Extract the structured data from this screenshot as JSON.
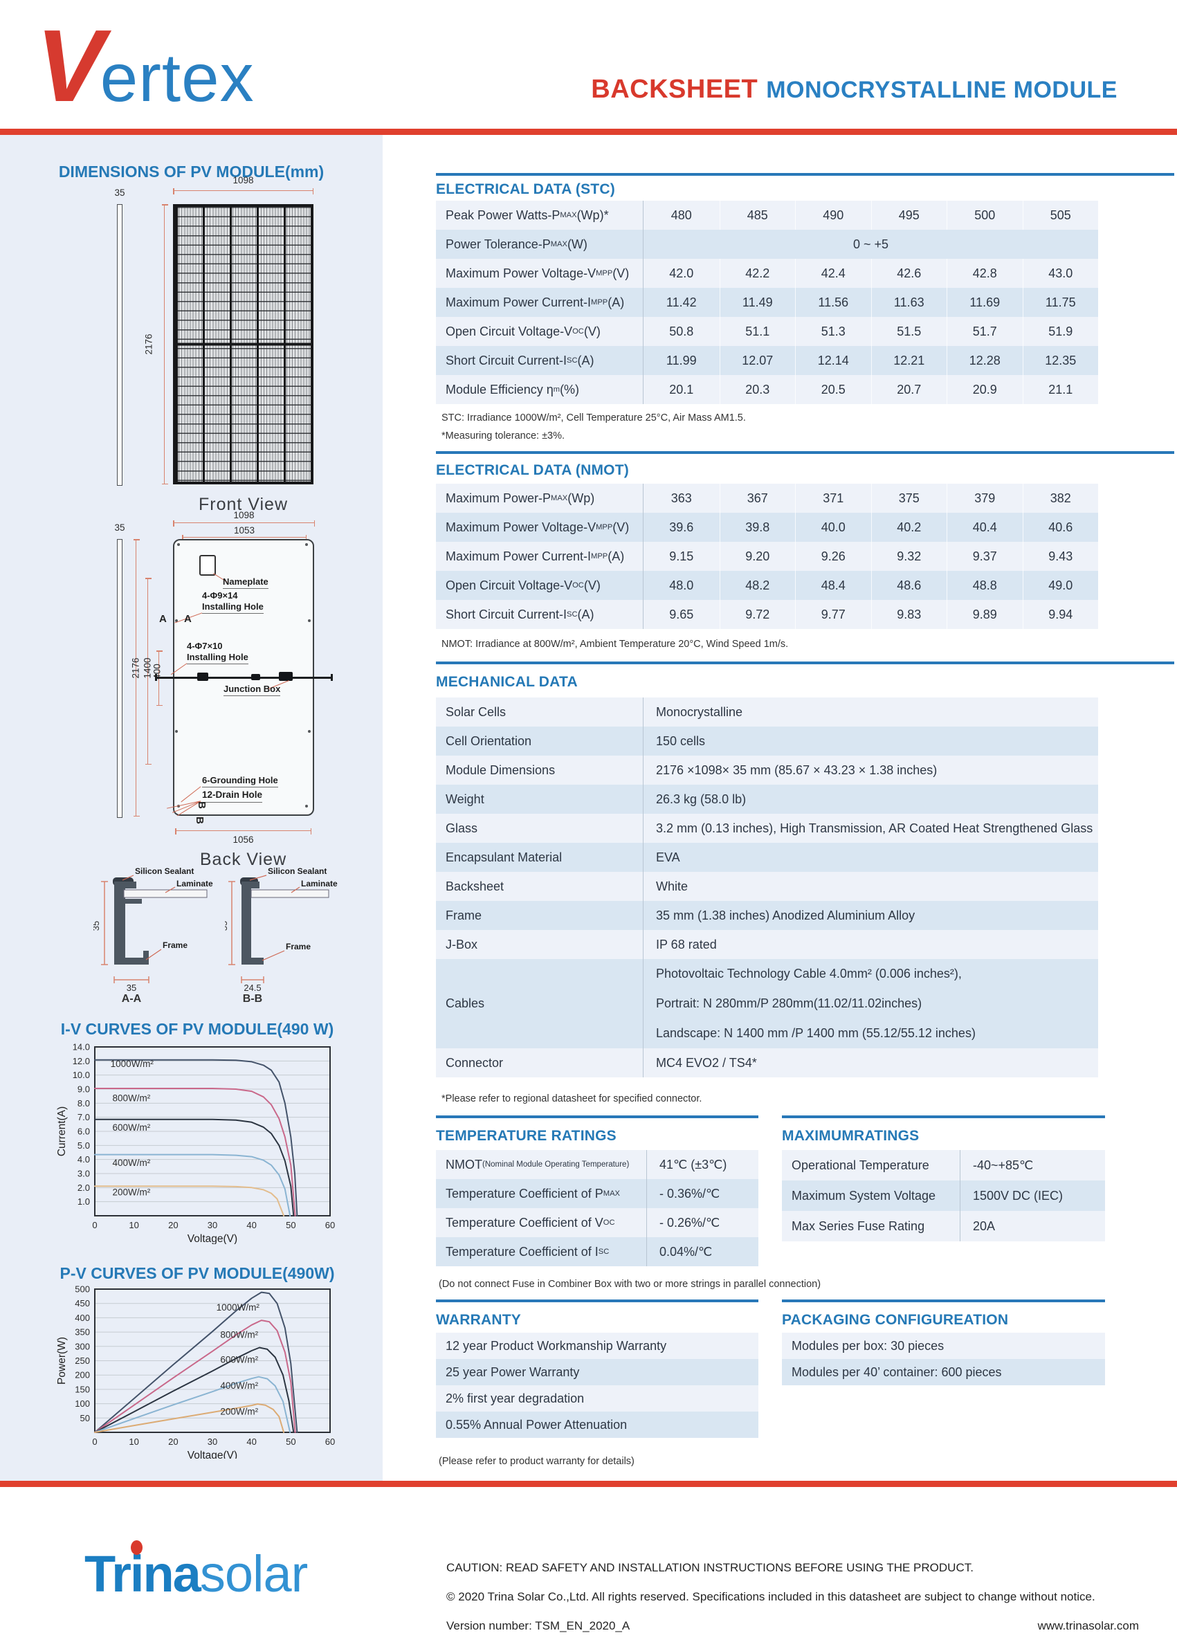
{
  "colors": {
    "accent_red": "#e0402e",
    "accent_blue": "#2579b6",
    "panel_bg": "#e9eef7",
    "row_light": "#eef2f9",
    "row_dark": "#d9e6f2",
    "logo_red": "#d63a2f",
    "logo_blue": "#2a80c2"
  },
  "header": {
    "logo_v": "V",
    "logo_rest": "ertex",
    "title_red": "BACKSHEET",
    "title_blue": "MONOCRYSTALLINE MODULE"
  },
  "dimensions": {
    "title": "DIMENSIONS OF PV MODULE(mm)",
    "front": {
      "top_width": "1098",
      "thickness": "35",
      "height": "2176",
      "caption": "Front View"
    },
    "back": {
      "outer_width": "1098",
      "inner_width": "1053",
      "thickness": "35",
      "height": "2176",
      "mid_span": "1400",
      "hole_span": "400",
      "bottom_width": "1056",
      "caption": "Back View",
      "nameplate": "Nameplate",
      "hole1_line1": "4-Φ9×14",
      "hole1_line2": "Installing Hole",
      "hole2_line1": "4-Φ7×10",
      "hole2_line2": "Installing Hole",
      "junction": "Junction Box",
      "grounding": "6-Grounding Hole",
      "drain": "12-Drain Hole",
      "marker_a": "A",
      "marker_b": "B"
    },
    "section_a": {
      "sealant": "Silicon Sealant",
      "laminate": "Laminate",
      "frame": "Frame",
      "height": "35",
      "width": "35",
      "caption": "A-A"
    },
    "section_b": {
      "sealant": "Silicon Sealant",
      "laminate": "Laminate",
      "frame": "Frame",
      "height": "35",
      "width": "24.5",
      "caption": "B-B"
    }
  },
  "electrical_stc": {
    "title": "ELECTRICAL DATA (STC)",
    "rows": [
      {
        "label": "Peak Power Watts-P<sub>MAX</sub> (Wp)*",
        "values": [
          "480",
          "485",
          "490",
          "495",
          "500",
          "505"
        ]
      },
      {
        "label": "Power Tolerance-P<sub>MAX</sub> (W)",
        "span": "0 ~ +5"
      },
      {
        "label": "Maximum Power Voltage-V<sub>MPP</sub> (V)",
        "values": [
          "42.0",
          "42.2",
          "42.4",
          "42.6",
          "42.8",
          "43.0"
        ]
      },
      {
        "label": "Maximum Power Current-I<sub>MPP</sub> (A)",
        "values": [
          "11.42",
          "11.49",
          "11.56",
          "11.63",
          "11.69",
          "11.75"
        ]
      },
      {
        "label": "Open Circuit Voltage-V<sub>OC</sub> (V)",
        "values": [
          "50.8",
          "51.1",
          "51.3",
          "51.5",
          "51.7",
          "51.9"
        ]
      },
      {
        "label": "Short Circuit Current-I<sub>SC</sub> (A)",
        "values": [
          "11.99",
          "12.07",
          "12.14",
          "12.21",
          "12.28",
          "12.35"
        ]
      },
      {
        "label": "Module Efficiency η<sub>m</sub> (%)",
        "values": [
          "20.1",
          "20.3",
          "20.5",
          "20.7",
          "20.9",
          "21.1"
        ]
      }
    ],
    "footnote1": "STC: Irradiance 1000W/m², Cell Temperature 25°C, Air Mass AM1.5.",
    "footnote2": "*Measuring tolerance: ±3%."
  },
  "electrical_nmot": {
    "title": "ELECTRICAL DATA (NMOT)",
    "rows": [
      {
        "label": "Maximum Power-P<sub>MAX</sub> (Wp)",
        "values": [
          "363",
          "367",
          "371",
          "375",
          "379",
          "382"
        ]
      },
      {
        "label": "Maximum Power Voltage-V<sub>MPP</sub> (V)",
        "values": [
          "39.6",
          "39.8",
          "40.0",
          "40.2",
          "40.4",
          "40.6"
        ]
      },
      {
        "label": "Maximum Power Current-I<sub>MPP</sub> (A)",
        "values": [
          "9.15",
          "9.20",
          "9.26",
          "9.32",
          "9.37",
          "9.43"
        ]
      },
      {
        "label": "Open Circuit Voltage-V<sub>OC</sub> (V)",
        "values": [
          "48.0",
          "48.2",
          "48.4",
          "48.6",
          "48.8",
          "49.0"
        ]
      },
      {
        "label": "Short Circuit Current-I<sub>SC</sub> (A)",
        "values": [
          "9.65",
          "9.72",
          "9.77",
          "9.83",
          "9.89",
          "9.94"
        ]
      }
    ],
    "footnote": "NMOT: Irradiance at 800W/m², Ambient Temperature 20°C, Wind Speed 1m/s."
  },
  "mechanical": {
    "title": "MECHANICAL DATA",
    "rows": [
      {
        "label": "Solar Cells",
        "lines": [
          "Monocrystalline"
        ]
      },
      {
        "label": "Cell Orientation",
        "lines": [
          "150 cells"
        ]
      },
      {
        "label": "Module Dimensions",
        "lines": [
          "2176 ×1098× 35 mm (85.67 × 43.23 × 1.38 inches)"
        ]
      },
      {
        "label": "Weight",
        "lines": [
          "26.3 kg (58.0 lb)"
        ]
      },
      {
        "label": "Glass",
        "lines": [
          "3.2 mm (0.13 inches), High Transmission, AR Coated Heat Strengthened Glass"
        ]
      },
      {
        "label": "Encapsulant Material",
        "lines": [
          "EVA"
        ]
      },
      {
        "label": "Backsheet",
        "lines": [
          "White"
        ]
      },
      {
        "label": "Frame",
        "lines": [
          "35 mm (1.38 inches) Anodized Aluminium Alloy"
        ]
      },
      {
        "label": "J-Box",
        "lines": [
          "IP 68 rated"
        ]
      },
      {
        "label": "Cables",
        "lines": [
          "Photovoltaic Technology Cable 4.0mm² (0.006 inches²),",
          "Portrait: N 280mm/P 280mm(11.02/11.02inches)",
          "Landscape: N 1400 mm /P 1400 mm (55.12/55.12 inches)"
        ]
      },
      {
        "label": "Connector",
        "lines": [
          "MC4 EVO2 / TS4*"
        ]
      }
    ],
    "footnote": "*Please refer to regional datasheet for specified connector."
  },
  "temperature": {
    "title": "TEMPERATURE RATINGS",
    "rows": [
      {
        "label": "NMOT<small> (Nominal Module Operating Temperature)</small>",
        "value": "41℃ (±3℃)"
      },
      {
        "label": "Temperature Coefficient of P<sub>MAX</sub>",
        "value": "- 0.36%/℃"
      },
      {
        "label": "Temperature Coefficient of V<sub>OC</sub>",
        "value": "- 0.26%/℃"
      },
      {
        "label": "Temperature Coefficient of I<sub>SC</sub>",
        "value": "0.04%/℃"
      }
    ],
    "footnote": "(Do not connect Fuse in Combiner Box with two or more strings in parallel connection)"
  },
  "maximum": {
    "title": "MAXIMUMRATINGS",
    "rows": [
      {
        "label": "Operational Temperature",
        "value": "-40~+85℃"
      },
      {
        "label": "Maximum System Voltage",
        "value": "1500V DC (IEC)"
      },
      {
        "label": "Max Series Fuse Rating",
        "value": "20A"
      }
    ]
  },
  "warranty": {
    "title": "WARRANTY",
    "items": [
      "12 year Product Workmanship Warranty",
      "25 year Power Warranty",
      "2% first year degradation",
      "0.55% Annual Power Attenuation"
    ],
    "footnote": "(Please refer to product warranty for details)"
  },
  "packaging": {
    "title": "PACKAGING CONFIGUREATION",
    "items": [
      "Modules per box: 30 pieces",
      "Modules per 40’ container: 600 pieces"
    ]
  },
  "footer": {
    "logo_trina": "Tr",
    "logo_trina2": "na",
    "logo_i": "i",
    "logo_solar": "solar",
    "caution": "CAUTION: READ SAFETY AND INSTALLATION INSTRUCTIONS BEFORE USING THE PRODUCT.",
    "copyright": "© 2020 Trina Solar Co.,Ltd. All rights reserved. Specifications included in this datasheet are subject to change without notice.",
    "version": "Version number: TSM_EN_2020_A",
    "website": "www.trinasolar.com"
  },
  "chart_data": [
    {
      "type": "line",
      "title": "I-V CURVES OF PV MODULE(490 W)",
      "xlabel": "Voltage(V)",
      "ylabel": "Current(A)",
      "xlim": [
        0,
        60
      ],
      "xticks": [
        0,
        10,
        20,
        30,
        40,
        50,
        60
      ],
      "yticks": [
        1,
        2,
        3,
        4,
        5,
        6,
        7,
        8,
        9,
        10,
        12,
        14
      ],
      "y_compressed_above": 10,
      "grid": true,
      "legend_position": "inline",
      "series": [
        {
          "name": "1000W/m²",
          "color": "#44536a",
          "points": [
            [
              0,
              12.15
            ],
            [
              30,
              12.15
            ],
            [
              36,
              12.1
            ],
            [
              40,
              11.9
            ],
            [
              43,
              11.4
            ],
            [
              45,
              10.7
            ],
            [
              47,
              9.5
            ],
            [
              48.5,
              8.0
            ],
            [
              50,
              5.6
            ],
            [
              51,
              3.0
            ],
            [
              51.6,
              0
            ]
          ]
        },
        {
          "name": "800W/m²",
          "color": "#c9688a",
          "points": [
            [
              0,
              9.05
            ],
            [
              30,
              9.05
            ],
            [
              36,
              9.0
            ],
            [
              40,
              8.85
            ],
            [
              43,
              8.45
            ],
            [
              45,
              7.9
            ],
            [
              47,
              6.9
            ],
            [
              48.5,
              5.6
            ],
            [
              50,
              3.6
            ],
            [
              51.1,
              0
            ]
          ]
        },
        {
          "name": "600W/m²",
          "color": "#2c3542",
          "points": [
            [
              0,
              6.85
            ],
            [
              30,
              6.85
            ],
            [
              36,
              6.8
            ],
            [
              40,
              6.65
            ],
            [
              43,
              6.3
            ],
            [
              45,
              5.85
            ],
            [
              47,
              5.0
            ],
            [
              48.5,
              3.9
            ],
            [
              50,
              2.1
            ],
            [
              50.7,
              0
            ]
          ]
        },
        {
          "name": "400W/m²",
          "color": "#8ab4d2",
          "points": [
            [
              0,
              4.35
            ],
            [
              30,
              4.35
            ],
            [
              36,
              4.3
            ],
            [
              40,
              4.2
            ],
            [
              43,
              3.95
            ],
            [
              45,
              3.6
            ],
            [
              47,
              2.9
            ],
            [
              48.5,
              1.9
            ],
            [
              49.8,
              0
            ]
          ]
        },
        {
          "name": "200W/m²",
          "color": "#e3bd8d",
          "points": [
            [
              0,
              2.1
            ],
            [
              30,
              2.1
            ],
            [
              36,
              2.07
            ],
            [
              40,
              2.0
            ],
            [
              43,
              1.85
            ],
            [
              45,
              1.6
            ],
            [
              46.5,
              1.2
            ],
            [
              48.2,
              0
            ]
          ]
        }
      ],
      "series_labels": [
        {
          "text": "1000W/m²",
          "x": 4,
          "y": 11.15
        },
        {
          "text": "800W/m²",
          "x": 4.5,
          "y": 8.15
        },
        {
          "text": "600W/m²",
          "x": 4.5,
          "y": 6.05
        },
        {
          "text": "400W/m²",
          "x": 4.5,
          "y": 3.55
        },
        {
          "text": "200W/m²",
          "x": 4.5,
          "y": 1.45
        }
      ]
    },
    {
      "type": "line",
      "title": "P-V CURVES OF PV MODULE(490W)",
      "xlabel": "Voltage(V)",
      "ylabel": "Power(W)",
      "xlim": [
        0,
        60
      ],
      "xticks": [
        0,
        10,
        20,
        30,
        40,
        50,
        60
      ],
      "ylim": [
        0,
        500
      ],
      "yticks": [
        50,
        100,
        150,
        200,
        250,
        300,
        350,
        400,
        450,
        500
      ],
      "grid": true,
      "legend_position": "inline",
      "series": [
        {
          "name": "1000W/m²",
          "color": "#44536a",
          "points": [
            [
              0,
              0
            ],
            [
              10,
              118
            ],
            [
              20,
              236
            ],
            [
              30,
              352
            ],
            [
              36,
              424
            ],
            [
              40,
              468
            ],
            [
              42.5,
              489
            ],
            [
              44.5,
              485
            ],
            [
              46.5,
              450
            ],
            [
              48.5,
              365
            ],
            [
              50,
              240
            ],
            [
              51.6,
              0
            ]
          ]
        },
        {
          "name": "800W/m²",
          "color": "#c9688a",
          "points": [
            [
              0,
              0
            ],
            [
              10,
              95
            ],
            [
              20,
              190
            ],
            [
              30,
              283
            ],
            [
              36,
              340
            ],
            [
              40,
              375
            ],
            [
              42.5,
              391
            ],
            [
              44.5,
              386
            ],
            [
              46.5,
              355
            ],
            [
              48.5,
              280
            ],
            [
              50,
              175
            ],
            [
              51.1,
              0
            ]
          ]
        },
        {
          "name": "600W/m²",
          "color": "#2c3542",
          "points": [
            [
              0,
              0
            ],
            [
              10,
              72
            ],
            [
              20,
              144
            ],
            [
              30,
              214
            ],
            [
              36,
              258
            ],
            [
              40,
              285
            ],
            [
              42,
              296
            ],
            [
              44,
              290
            ],
            [
              46,
              262
            ],
            [
              48,
              200
            ],
            [
              49.5,
              110
            ],
            [
              50.7,
              0
            ]
          ]
        },
        {
          "name": "400W/m²",
          "color": "#8ab4d2",
          "points": [
            [
              0,
              0
            ],
            [
              10,
              48
            ],
            [
              20,
              96
            ],
            [
              30,
              142
            ],
            [
              36,
              171
            ],
            [
              40,
              188
            ],
            [
              41.8,
              194
            ],
            [
              44,
              187
            ],
            [
              46,
              162
            ],
            [
              48,
              108
            ],
            [
              49.8,
              0
            ]
          ]
        },
        {
          "name": "200W/m²",
          "color": "#dcab74",
          "points": [
            [
              0,
              0
            ],
            [
              10,
              24
            ],
            [
              20,
              47
            ],
            [
              30,
              70
            ],
            [
              36,
              84
            ],
            [
              40,
              94
            ],
            [
              41.5,
              99
            ],
            [
              43.5,
              95
            ],
            [
              45.5,
              80
            ],
            [
              47,
              55
            ],
            [
              48.2,
              0
            ]
          ]
        }
      ],
      "series_labels": [
        {
          "text": "1000W/m²",
          "x": 31,
          "y": 425
        },
        {
          "text": "800W/m²",
          "x": 32,
          "y": 330
        },
        {
          "text": "600W/m²",
          "x": 32,
          "y": 243
        },
        {
          "text": "400W/m²",
          "x": 32,
          "y": 152
        },
        {
          "text": "200W/m²",
          "x": 32,
          "y": 62
        }
      ]
    }
  ]
}
